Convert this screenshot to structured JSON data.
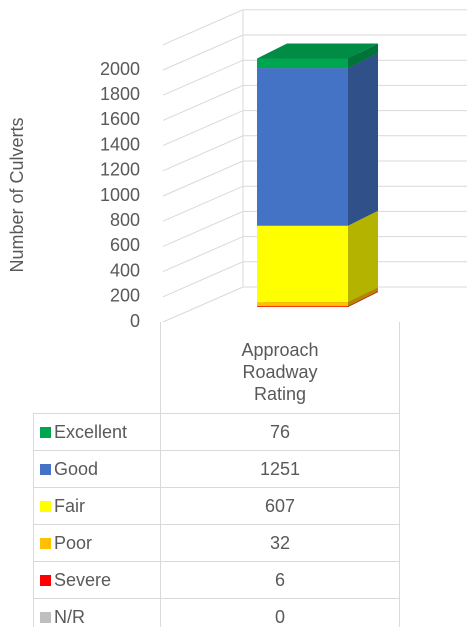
{
  "chart_data": {
    "type": "stacked_bar_3d",
    "y_label": "Number of Culverts",
    "categories": [
      "Approach Roadway Rating"
    ],
    "series": [
      {
        "name": "Excellent",
        "color": "#00a550",
        "values": [
          76
        ]
      },
      {
        "name": "Good",
        "color": "#4472c4",
        "values": [
          1251
        ]
      },
      {
        "name": "Fair",
        "color": "#ffff00",
        "values": [
          607
        ]
      },
      {
        "name": "Poor",
        "color": "#ffc000",
        "values": [
          32
        ]
      },
      {
        "name": "Severe",
        "color": "#ff0000",
        "values": [
          6
        ]
      },
      {
        "name": "N/R",
        "color": "#bfbfbf",
        "values": [
          0
        ]
      }
    ],
    "ylim": [
      0,
      2200
    ],
    "yticks": [
      0,
      200,
      400,
      600,
      800,
      1000,
      1200,
      1400,
      1600,
      1800,
      2000
    ],
    "grid": true
  }
}
